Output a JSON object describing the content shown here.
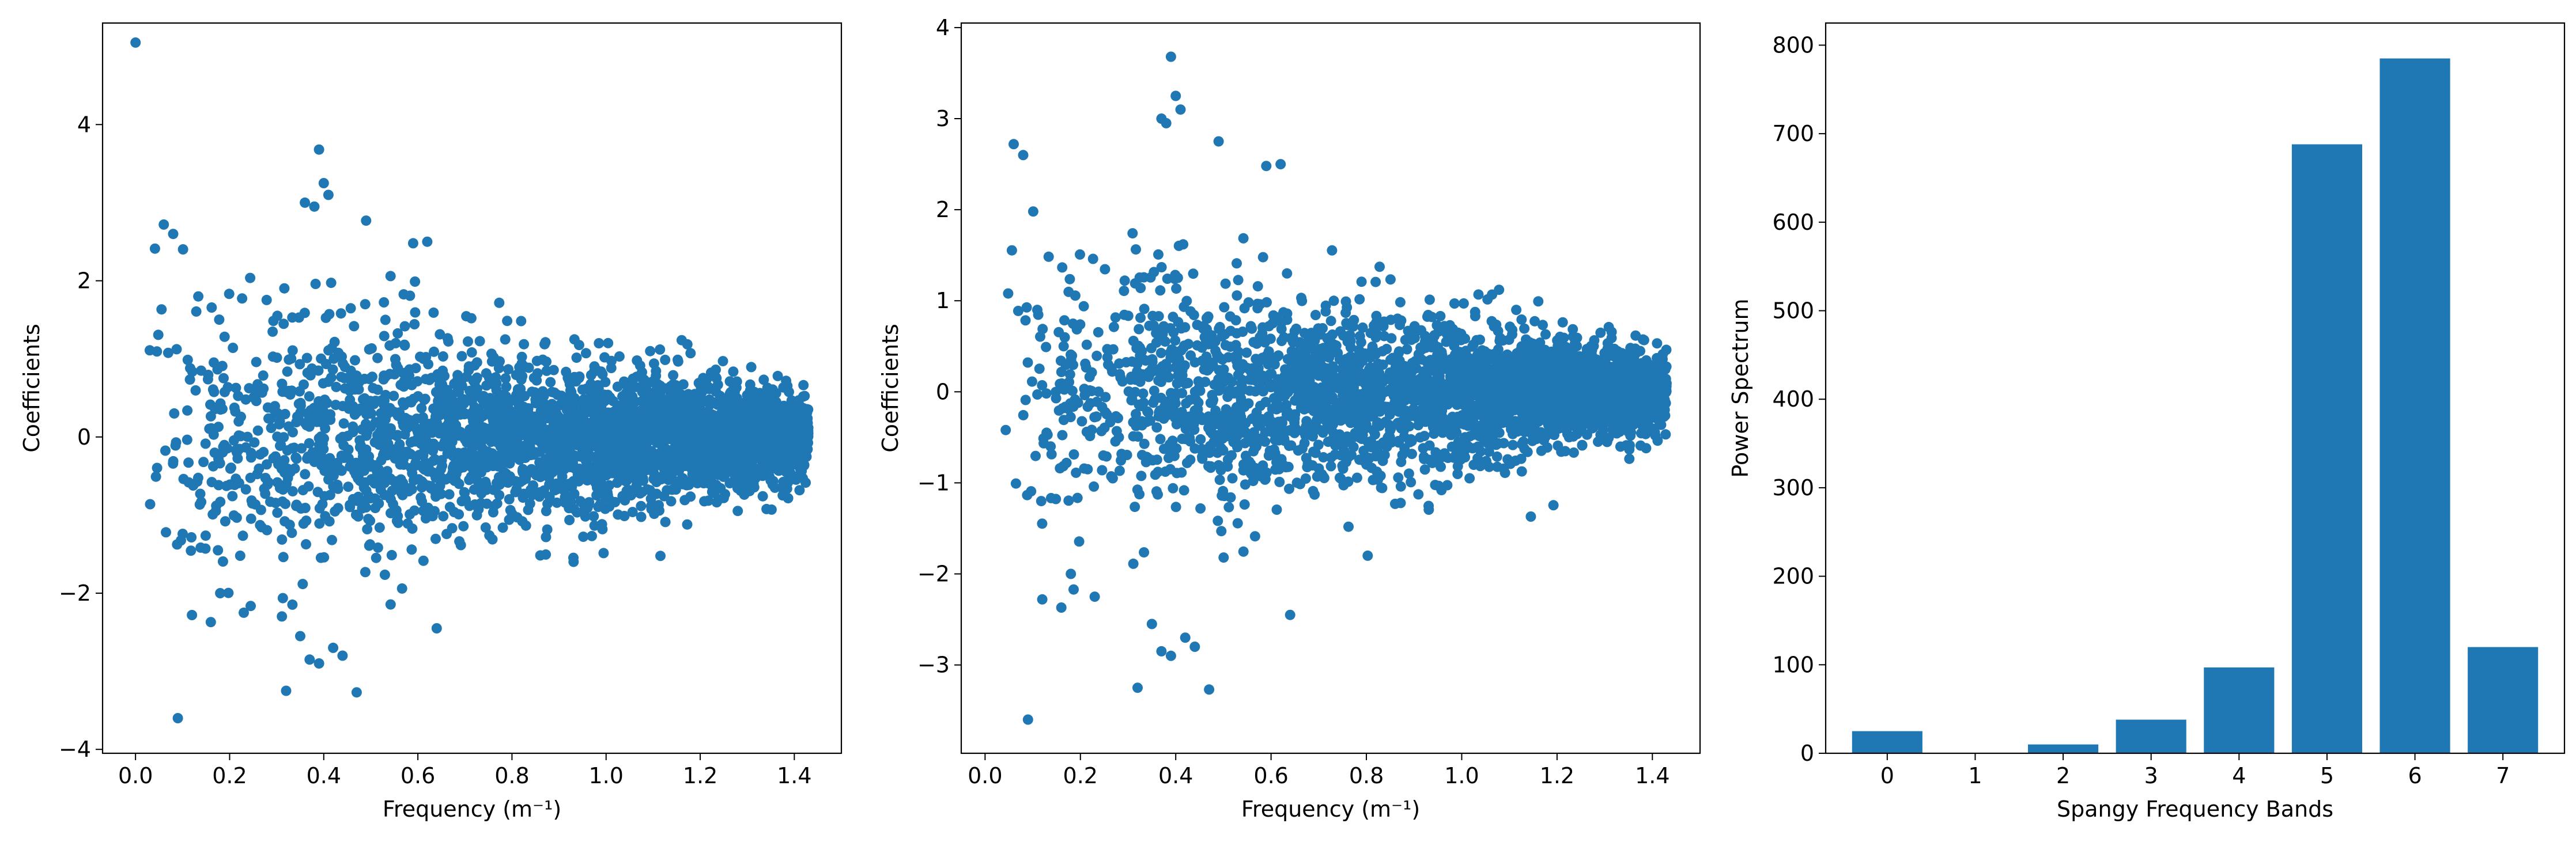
{
  "colors": {
    "series": "#1f77b4",
    "axis": "#000000",
    "background": "#ffffff"
  },
  "chart_data": [
    {
      "type": "scatter",
      "xlabel": "Frequency (m⁻¹)",
      "ylabel": "Coefficients",
      "xlim": [
        -0.07,
        1.5
      ],
      "ylim": [
        -4.05,
        5.3
      ],
      "xticks": [
        0.0,
        0.2,
        0.4,
        0.6,
        0.8,
        1.0,
        1.2,
        1.4
      ],
      "xtick_labels": [
        "0.0",
        "0.2",
        "0.4",
        "0.6",
        "0.8",
        "1.0",
        "1.2",
        "1.4"
      ],
      "yticks": [
        -4,
        -2,
        0,
        2,
        4
      ],
      "ytick_labels": [
        "−4",
        "−2",
        "0",
        "2",
        "4"
      ],
      "cloud": {
        "x_min": 0.02,
        "x_max": 1.43,
        "n_points": 3000,
        "spread_low_freq": 1.15,
        "spread_high_freq": 0.28
      },
      "outliers": [
        {
          "x": 0.0,
          "y": 5.05
        },
        {
          "x": 0.09,
          "y": -3.6
        },
        {
          "x": 0.39,
          "y": 3.68
        },
        {
          "x": 0.4,
          "y": 3.25
        },
        {
          "x": 0.41,
          "y": 3.1
        },
        {
          "x": 0.36,
          "y": 3.0
        },
        {
          "x": 0.38,
          "y": 2.95
        },
        {
          "x": 0.06,
          "y": 2.72
        },
        {
          "x": 0.08,
          "y": 2.6
        },
        {
          "x": 0.49,
          "y": 2.77
        },
        {
          "x": 0.32,
          "y": -3.25
        },
        {
          "x": 0.47,
          "y": -3.27
        },
        {
          "x": 0.37,
          "y": -2.85
        },
        {
          "x": 0.39,
          "y": -2.9
        },
        {
          "x": 0.42,
          "y": -2.7
        },
        {
          "x": 0.44,
          "y": -2.8
        },
        {
          "x": 0.35,
          "y": -2.55
        },
        {
          "x": 0.12,
          "y": -2.28
        },
        {
          "x": 0.16,
          "y": -2.37
        },
        {
          "x": 0.18,
          "y": -2.0
        },
        {
          "x": 0.23,
          "y": -2.25
        },
        {
          "x": 0.59,
          "y": 2.48
        },
        {
          "x": 0.62,
          "y": 2.5
        },
        {
          "x": 0.64,
          "y": -2.45
        }
      ]
    },
    {
      "type": "scatter",
      "xlabel": "Frequency (m⁻¹)",
      "ylabel": "Coefficients",
      "xlim": [
        -0.05,
        1.5
      ],
      "ylim": [
        -3.97,
        4.05
      ],
      "xticks": [
        0.0,
        0.2,
        0.4,
        0.6,
        0.8,
        1.0,
        1.2,
        1.4
      ],
      "xtick_labels": [
        "0.0",
        "0.2",
        "0.4",
        "0.6",
        "0.8",
        "1.0",
        "1.2",
        "1.4"
      ],
      "yticks": [
        -3,
        -2,
        -1,
        0,
        1,
        2,
        3,
        4
      ],
      "ytick_labels": [
        "−3",
        "−2",
        "−1",
        "0",
        "1",
        "2",
        "3",
        "4"
      ],
      "cloud": {
        "x_min": 0.02,
        "x_max": 1.43,
        "n_points": 3000,
        "spread_low_freq": 0.95,
        "spread_high_freq": 0.22
      },
      "outliers": [
        {
          "x": 0.39,
          "y": 3.68
        },
        {
          "x": 0.4,
          "y": 3.25
        },
        {
          "x": 0.41,
          "y": 3.1
        },
        {
          "x": 0.37,
          "y": 3.0
        },
        {
          "x": 0.38,
          "y": 2.95
        },
        {
          "x": 0.06,
          "y": 2.72
        },
        {
          "x": 0.08,
          "y": 2.6
        },
        {
          "x": 0.49,
          "y": 2.75
        },
        {
          "x": 0.09,
          "y": -3.6
        },
        {
          "x": 0.32,
          "y": -3.25
        },
        {
          "x": 0.47,
          "y": -3.27
        },
        {
          "x": 0.37,
          "y": -2.85
        },
        {
          "x": 0.39,
          "y": -2.9
        },
        {
          "x": 0.42,
          "y": -2.7
        },
        {
          "x": 0.44,
          "y": -2.8
        },
        {
          "x": 0.35,
          "y": -2.55
        },
        {
          "x": 0.12,
          "y": -2.28
        },
        {
          "x": 0.16,
          "y": -2.37
        },
        {
          "x": 0.18,
          "y": -2.0
        },
        {
          "x": 0.23,
          "y": -2.25
        },
        {
          "x": 0.59,
          "y": 2.48
        },
        {
          "x": 0.62,
          "y": 2.5
        },
        {
          "x": 0.64,
          "y": -2.45
        }
      ]
    },
    {
      "type": "bar",
      "xlabel": "Spangy Frequency Bands",
      "ylabel": "Power Spectrum",
      "categories": [
        "0",
        "1",
        "2",
        "3",
        "4",
        "5",
        "6",
        "7"
      ],
      "values": [
        25,
        0,
        10,
        38,
        97,
        688,
        785,
        120
      ],
      "xlim": [
        -0.7,
        7.7
      ],
      "ylim": [
        0,
        825
      ],
      "yticks": [
        0,
        100,
        200,
        300,
        400,
        500,
        600,
        700,
        800
      ],
      "ytick_labels": [
        "0",
        "100",
        "200",
        "300",
        "400",
        "500",
        "600",
        "700",
        "800"
      ]
    }
  ]
}
